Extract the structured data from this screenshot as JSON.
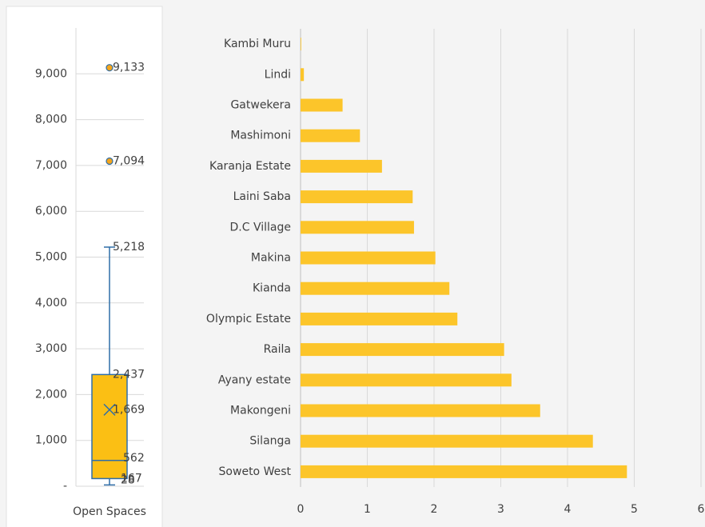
{
  "chart_data": [
    {
      "type": "box",
      "categories": [
        "Open Spaces"
      ],
      "min": 28,
      "q1": 167,
      "median": 562,
      "q3": 2437,
      "max": 5218,
      "mean": 1669,
      "outliers": [
        9133,
        7094
      ],
      "outlier_labels": [
        "9,133",
        "7,094"
      ],
      "max_label": "5,218",
      "q3_label": "2,437",
      "mean_label": "1,669",
      "box_color": "#fbbf14",
      "line_color": "#2f6ea8",
      "ylim": [
        0,
        10000
      ],
      "yticks": [
        {
          "value": 0,
          "label": "-"
        },
        {
          "value": 1000,
          "label": "1,000"
        },
        {
          "value": 2000,
          "label": "2,000"
        },
        {
          "value": 3000,
          "label": "3,000"
        },
        {
          "value": 4000,
          "label": "4,000"
        },
        {
          "value": 5000,
          "label": "5,000"
        },
        {
          "value": 6000,
          "label": "6,000"
        },
        {
          "value": 7000,
          "label": "7,000"
        },
        {
          "value": 8000,
          "label": "8,000"
        },
        {
          "value": 9000,
          "label": "9,000"
        }
      ],
      "grid": true
    },
    {
      "type": "hbar",
      "categories": [
        "Kambi Muru",
        "Lindi",
        "Gatwekera",
        "Mashimoni",
        "Karanja Estate",
        "Laini Saba",
        "D.C Village",
        "Makina",
        "Kianda",
        "Olympic Estate",
        "Raila",
        "Ayany estate",
        "Makongeni",
        "Silanga",
        "Soweto West"
      ],
      "values": [
        0.01,
        0.05,
        0.63,
        0.89,
        1.22,
        1.68,
        1.7,
        2.02,
        2.23,
        2.35,
        3.05,
        3.16,
        3.59,
        4.38,
        4.89
      ],
      "color": "#fcc52a",
      "xlim": [
        0,
        6
      ],
      "xticks": [
        0,
        1,
        2,
        3,
        4,
        5,
        6
      ],
      "grid": true
    }
  ]
}
